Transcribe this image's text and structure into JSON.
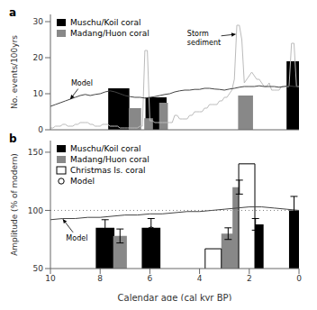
{
  "chart_data": [
    {
      "type": "bar",
      "title": "a",
      "ylabel": "No. events/100yrs",
      "xlim": [
        10,
        0
      ],
      "xticks": [
        10,
        8,
        6,
        4,
        2,
        0
      ],
      "ylim": [
        0,
        32
      ],
      "yticks": [
        0,
        10,
        20,
        30
      ],
      "tick_labels": "y",
      "legend": "upper left",
      "grid": false,
      "series": [
        {
          "type": "line",
          "color": "#bbbbbb",
          "x": [
            10.0,
            9.9,
            9.8,
            9.7,
            9.6,
            9.5,
            9.4,
            9.3,
            9.2,
            9.1,
            9.0,
            8.9,
            8.8,
            8.7,
            8.6,
            8.5,
            8.4,
            8.3,
            8.2,
            8.1,
            8.0,
            7.9,
            7.8,
            7.7,
            7.6,
            7.5,
            7.4,
            7.3,
            7.2,
            7.1,
            7.0,
            6.9,
            6.8,
            6.7,
            6.6,
            6.5,
            6.4,
            6.3,
            6.2,
            6.1,
            6.0,
            5.9,
            5.8,
            5.7,
            5.6,
            5.5,
            5.4,
            5.3,
            5.2,
            5.1,
            5.0,
            4.9,
            4.8,
            4.7,
            4.6,
            4.5,
            4.4,
            4.3,
            4.2,
            4.1,
            4.0,
            3.9,
            3.8,
            3.7,
            3.6,
            3.5,
            3.4,
            3.3,
            3.2,
            3.1,
            3.0,
            2.9,
            2.8,
            2.7,
            2.6,
            2.5,
            2.4,
            2.3,
            2.2,
            2.1,
            2.0,
            1.9,
            1.8,
            1.7,
            1.6,
            1.5,
            1.4,
            1.3,
            1.2,
            1.1,
            1.0,
            0.9,
            0.8,
            0.7,
            0.6,
            0.5,
            0.4,
            0.3,
            0.2,
            0.1,
            0.0
          ],
          "values": [
            0.5,
            0.5,
            1.0,
            1.0,
            1.0,
            1.5,
            1.5,
            1.0,
            1.0,
            1.0,
            1.5,
            1.5,
            2.0,
            2.0,
            2.0,
            2.0,
            1.5,
            1.5,
            1.0,
            1.0,
            1.0,
            1.5,
            1.5,
            1.5,
            1.0,
            1.0,
            1.0,
            1.0,
            0.5,
            0.5,
            0.5,
            0.5,
            0.5,
            0.5,
            0.5,
            0.5,
            1.0,
            1.0,
            22.0,
            22.0,
            2.5,
            2.5,
            2.0,
            2.0,
            2.0,
            2.0,
            2.0,
            2.0,
            2.0,
            2.0,
            4.0,
            4.0,
            3.0,
            3.0,
            3.0,
            3.0,
            4.0,
            4.0,
            5.0,
            5.0,
            5.0,
            5.0,
            6.0,
            6.0,
            7.0,
            7.0,
            7.0,
            7.0,
            8.0,
            8.0,
            9.0,
            9.0,
            10.0,
            11.0,
            14.0,
            29.0,
            29.0,
            25.0,
            13.0,
            14.0,
            15.0,
            16.0,
            15.0,
            14.0,
            14.0,
            13.0,
            12.0,
            12.0,
            13.0,
            11.0,
            11.0,
            11.0,
            11.0,
            12.0,
            12.0,
            12.0,
            12.0,
            24.0,
            24.0,
            12.0,
            12.0
          ]
        },
        {
          "type": "line",
          "color": "#444444",
          "x": [
            10.0,
            9.8,
            9.6,
            9.4,
            9.2,
            9.0,
            8.8,
            8.6,
            8.4,
            8.2,
            8.0,
            7.8,
            7.6,
            7.4,
            7.2,
            7.0,
            6.8,
            6.6,
            6.4,
            6.2,
            6.0,
            5.8,
            5.6,
            5.4,
            5.2,
            5.0,
            4.8,
            4.6,
            4.4,
            4.2,
            4.0,
            3.8,
            3.6,
            3.4,
            3.2,
            3.0,
            2.8,
            2.6,
            2.4,
            2.2,
            2.0,
            1.8,
            1.6,
            1.4,
            1.2,
            1.0,
            0.8,
            0.6,
            0.4,
            0.2,
            0.0
          ],
          "values": [
            6.5,
            7.0,
            7.5,
            8.0,
            8.5,
            9.0,
            9.5,
            9.8,
            9.5,
            9.8,
            10.0,
            10.5,
            10.8,
            10.5,
            10.0,
            9.5,
            9.2,
            9.0,
            9.0,
            8.8,
            9.0,
            9.2,
            9.5,
            9.8,
            10.0,
            10.5,
            10.8,
            11.0,
            11.0,
            11.2,
            11.2,
            11.5,
            11.5,
            11.3,
            11.2,
            11.0,
            11.3,
            11.5,
            11.8,
            12.0,
            12.0,
            12.0,
            12.2,
            12.0,
            12.0,
            12.0,
            11.8,
            12.0,
            12.2,
            12.0,
            12.0
          ]
        },
        {
          "type": "bar",
          "name": "Muschu/Koil coral",
          "color": "#000000",
          "x": [
            7.25,
            5.75,
            0.25
          ],
          "values": [
            11.5,
            9.0,
            19.0
          ],
          "widths": [
            0.85,
            0.85,
            0.5
          ]
        },
        {
          "type": "bar",
          "name": "Madang/Huon coral",
          "color": "#888888",
          "x": [
            6.6,
            6.05,
            5.45,
            2.15
          ],
          "values": [
            6.0,
            3.2,
            7.5,
            9.5
          ],
          "widths": [
            0.5,
            0.35,
            0.35,
            0.6
          ]
        }
      ],
      "annotations": [
        {
          "text": "Model",
          "x": 8.3,
          "y": 13.0,
          "arrow_to": [
            9.2,
            8.5
          ]
        },
        {
          "text": "Storm\nsediment",
          "x": 4.5,
          "y": 25.5,
          "arrow_to": [
            2.55,
            26.5
          ]
        }
      ]
    },
    {
      "type": "bar",
      "title": "b",
      "xlabel": "Calendar age (cal kyr BP)",
      "ylabel": "Amplitude (% of modern)",
      "xlim": [
        10,
        0
      ],
      "xticks": [
        10,
        8,
        6,
        4,
        2,
        0
      ],
      "ylim": [
        50,
        160
      ],
      "yticks": [
        50,
        100,
        150
      ],
      "legend": "upper left",
      "grid": false,
      "series": [
        {
          "type": "hline",
          "color": "gray",
          "line_style": "dotted",
          "values": [
            100
          ]
        },
        {
          "type": "line",
          "color": "#444444",
          "x": [
            10.0,
            9.5,
            9.0,
            8.5,
            8.0,
            7.5,
            7.0,
            6.5,
            6.0,
            5.5,
            5.0,
            4.5,
            4.0,
            3.5,
            3.0,
            2.5,
            2.0,
            1.5,
            1.0,
            0.5,
            0.0
          ],
          "values": [
            92,
            93,
            93,
            94,
            94,
            95,
            96,
            96,
            97,
            97,
            98,
            99,
            99,
            100,
            101,
            102,
            103,
            103,
            102,
            101,
            100
          ]
        },
        {
          "type": "bar",
          "name": "Muschu/Koil coral",
          "color": "#000000",
          "x": [
            7.8,
            5.95,
            1.75,
            0.2
          ],
          "values": [
            85,
            85,
            88,
            100
          ],
          "widths": [
            0.75,
            0.75,
            0.65,
            0.4
          ],
          "yerr": [
            7,
            8,
            5,
            12
          ]
        },
        {
          "type": "bar",
          "name": "Madang/Huon coral",
          "color": "#888888",
          "x": [
            7.2,
            2.85,
            2.4
          ],
          "values": [
            78,
            80,
            120
          ],
          "widths": [
            0.55,
            0.55,
            0.55
          ],
          "yerr": [
            6,
            5,
            6
          ]
        },
        {
          "type": "bar",
          "name": "Christmas Is. coral",
          "color": "#ffffff",
          "x": [
            3.45,
            2.1
          ],
          "values": [
            67,
            140
          ],
          "widths": [
            0.65,
            0.65
          ]
        },
        {
          "type": "scatter",
          "name": "Model",
          "color": "#000000",
          "marker": "circle",
          "x": [
            5.95
          ],
          "values": [
            83
          ]
        }
      ],
      "annotations": [
        {
          "text": "Model",
          "x": 8.5,
          "y": 76,
          "arrow_to": [
            9.5,
            92.5
          ]
        }
      ]
    }
  ]
}
